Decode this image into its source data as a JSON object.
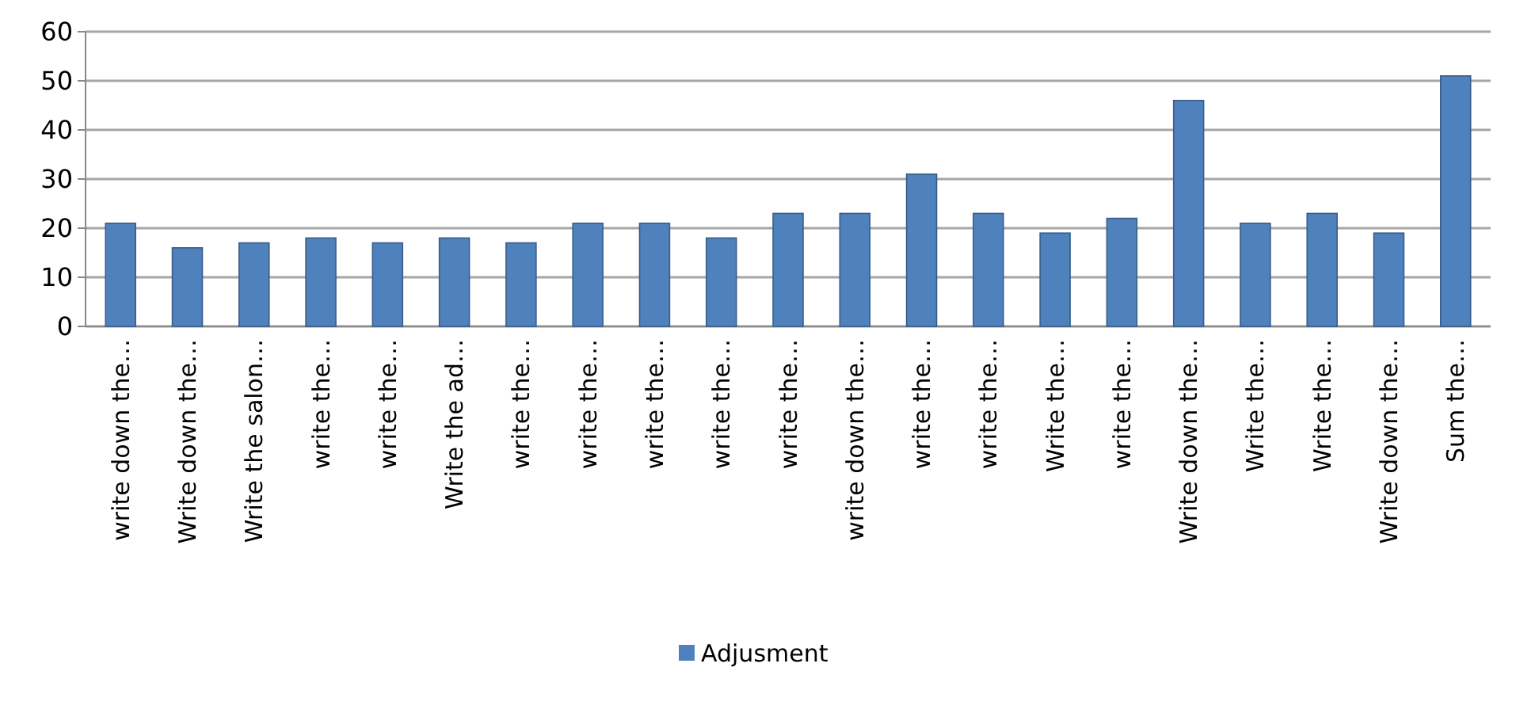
{
  "chart_data": {
    "type": "bar",
    "categories": [
      "write down the…",
      "Write down the…",
      "Write the salon…",
      "write the…",
      "write the…",
      "Write the ad…",
      "write the…",
      "write the…",
      "write the…",
      "write the…",
      "write the…",
      "write down the…",
      "write the…",
      "write the…",
      "Write the…",
      "write the…",
      "Write down the…",
      "Write the…",
      "Write the…",
      "Write down the…",
      "Sum the…"
    ],
    "series": [
      {
        "name": "Adjusment",
        "color": "#4f81bd",
        "values": [
          21,
          16,
          17,
          18,
          17,
          18,
          17,
          21,
          21,
          18,
          23,
          23,
          31,
          23,
          19,
          22,
          46,
          21,
          23,
          19,
          51
        ]
      }
    ],
    "ylim": [
      0,
      60
    ],
    "yticks": [
      0,
      10,
      20,
      30,
      40,
      50,
      60
    ],
    "grid": "y",
    "legend": "bottom"
  }
}
